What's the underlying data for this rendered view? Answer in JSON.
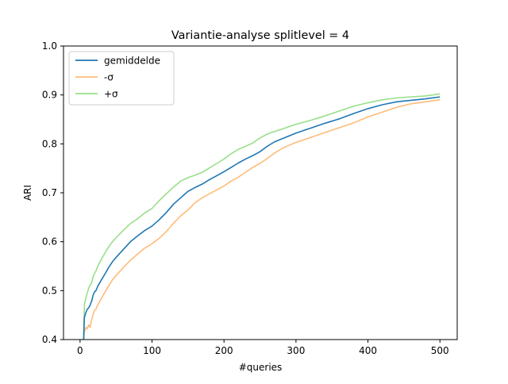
{
  "chart_data": {
    "type": "line",
    "title": "Variantie-analyse splitlevel = 4",
    "xlabel": "#queries",
    "ylabel": "ARI",
    "xlim": [
      -23,
      524
    ],
    "ylim": [
      0.4,
      1.0
    ],
    "xticks": [
      0,
      100,
      200,
      300,
      400,
      500
    ],
    "xtick_labels": [
      "0",
      "100",
      "200",
      "300",
      "400",
      "500"
    ],
    "yticks": [
      0.4,
      0.5,
      0.6,
      0.7,
      0.8,
      0.9,
      1.0
    ],
    "ytick_labels": [
      "0.4",
      "0.5",
      "0.6",
      "0.7",
      "0.8",
      "0.9",
      "1.0"
    ],
    "grid": false,
    "legend_position": "top-left",
    "series": [
      {
        "name": "gemiddelde",
        "color": "#1f77b4",
        "x": [
          5,
          6,
          8,
          10,
          12,
          14,
          15,
          16,
          18,
          20,
          22,
          25,
          30,
          35,
          40,
          45,
          50,
          60,
          70,
          80,
          90,
          100,
          110,
          120,
          130,
          140,
          150,
          160,
          170,
          180,
          190,
          200,
          210,
          220,
          230,
          240,
          250,
          260,
          270,
          280,
          290,
          300,
          320,
          340,
          360,
          380,
          400,
          420,
          440,
          460,
          480,
          500
        ],
        "y": [
          0.4,
          0.445,
          0.455,
          0.462,
          0.465,
          0.47,
          0.475,
          0.478,
          0.49,
          0.497,
          0.5,
          0.51,
          0.523,
          0.535,
          0.548,
          0.559,
          0.568,
          0.584,
          0.6,
          0.612,
          0.623,
          0.632,
          0.645,
          0.66,
          0.677,
          0.69,
          0.703,
          0.711,
          0.718,
          0.727,
          0.735,
          0.743,
          0.752,
          0.761,
          0.769,
          0.776,
          0.784,
          0.795,
          0.804,
          0.81,
          0.816,
          0.822,
          0.832,
          0.842,
          0.851,
          0.862,
          0.872,
          0.88,
          0.886,
          0.889,
          0.892,
          0.896
        ]
      },
      {
        "name": "-σ",
        "color": "#ffbb78",
        "x": [
          5,
          6,
          8,
          10,
          12,
          14,
          16,
          18,
          20,
          22,
          25,
          30,
          35,
          40,
          45,
          50,
          60,
          70,
          80,
          90,
          100,
          110,
          120,
          130,
          140,
          150,
          160,
          170,
          180,
          190,
          200,
          210,
          220,
          230,
          240,
          250,
          260,
          270,
          280,
          290,
          300,
          320,
          340,
          360,
          380,
          400,
          420,
          440,
          460,
          480,
          500
        ],
        "y": [
          0.4,
          0.415,
          0.425,
          0.422,
          0.43,
          0.425,
          0.44,
          0.45,
          0.46,
          0.462,
          0.472,
          0.485,
          0.498,
          0.51,
          0.522,
          0.531,
          0.547,
          0.562,
          0.575,
          0.587,
          0.596,
          0.607,
          0.621,
          0.638,
          0.653,
          0.665,
          0.68,
          0.69,
          0.698,
          0.706,
          0.714,
          0.724,
          0.732,
          0.742,
          0.752,
          0.76,
          0.77,
          0.781,
          0.79,
          0.797,
          0.803,
          0.813,
          0.823,
          0.833,
          0.843,
          0.855,
          0.865,
          0.875,
          0.882,
          0.886,
          0.89
        ]
      },
      {
        "name": "+σ",
        "color": "#98df8a",
        "x": [
          5,
          6,
          8,
          10,
          12,
          14,
          16,
          18,
          20,
          22,
          25,
          30,
          35,
          40,
          45,
          50,
          60,
          70,
          80,
          90,
          100,
          110,
          120,
          130,
          140,
          150,
          160,
          170,
          180,
          190,
          200,
          210,
          220,
          230,
          240,
          250,
          260,
          270,
          280,
          290,
          300,
          320,
          340,
          360,
          380,
          400,
          420,
          440,
          460,
          480,
          500
        ],
        "y": [
          0.4,
          0.47,
          0.485,
          0.495,
          0.505,
          0.512,
          0.515,
          0.528,
          0.535,
          0.54,
          0.551,
          0.565,
          0.578,
          0.59,
          0.6,
          0.608,
          0.623,
          0.637,
          0.647,
          0.659,
          0.668,
          0.684,
          0.698,
          0.712,
          0.724,
          0.731,
          0.736,
          0.742,
          0.751,
          0.76,
          0.769,
          0.78,
          0.789,
          0.795,
          0.802,
          0.812,
          0.82,
          0.825,
          0.83,
          0.835,
          0.84,
          0.848,
          0.857,
          0.867,
          0.877,
          0.884,
          0.89,
          0.894,
          0.896,
          0.898,
          0.902
        ]
      }
    ]
  }
}
